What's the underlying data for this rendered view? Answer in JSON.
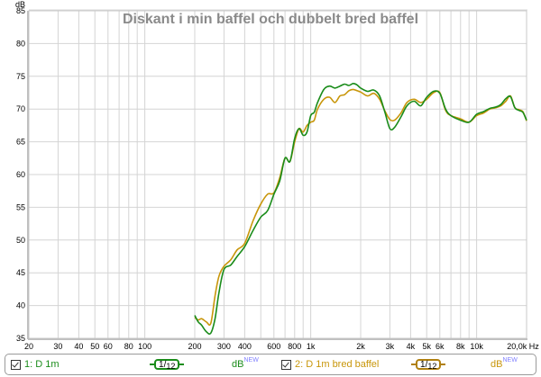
{
  "chart_data": {
    "type": "line",
    "title": "Diskant i min baffel och dubbelt bred baffel",
    "xlabel": "Hz",
    "ylabel": "dB",
    "xscale": "log",
    "xlim": [
      20,
      20000
    ],
    "ylim": [
      35,
      85
    ],
    "grid": true,
    "legend_position": "bottom",
    "y_ticks": [
      "35",
      "40",
      "45",
      "50",
      "55",
      "60",
      "65",
      "70",
      "75",
      "80",
      "85"
    ],
    "x_ticks": [
      "20",
      "30",
      "40",
      "50",
      "60",
      "80",
      "100",
      "200",
      "300",
      "400",
      "600",
      "800",
      "1k",
      "2k",
      "3k",
      "4k",
      "5k",
      "6k",
      "8k",
      "10k",
      "20,0k Hz"
    ],
    "series": [
      {
        "name": "1: D 1m",
        "color": "#1a8c1a",
        "x": [
          200,
          210,
          220,
          235,
          250,
          265,
          280,
          300,
          330,
          360,
          400,
          450,
          500,
          550,
          600,
          650,
          700,
          750,
          800,
          850,
          900,
          950,
          1000,
          1050,
          1100,
          1200,
          1300,
          1400,
          1500,
          1600,
          1700,
          1800,
          1900,
          2000,
          2200,
          2400,
          2600,
          2800,
          3000,
          3200,
          3500,
          3800,
          4200,
          4600,
          5000,
          5500,
          6000,
          6500,
          7000,
          8000,
          9000,
          10000,
          11000,
          12000,
          13000,
          14000,
          15000,
          16000,
          17000,
          18000,
          19000,
          20000
        ],
        "values": [
          38.5,
          37.5,
          37,
          36,
          35.8,
          38,
          42,
          45.5,
          46.2,
          47.5,
          49,
          51.5,
          53.5,
          54.5,
          57,
          59,
          62.5,
          62,
          65.5,
          67,
          66,
          66.5,
          69,
          69.5,
          71,
          73,
          73.5,
          73.2,
          73.5,
          73.8,
          73.6,
          73.9,
          73.7,
          73.2,
          72.7,
          72.9,
          72,
          69.5,
          67,
          67.2,
          68.8,
          70.5,
          71.2,
          70.5,
          71.8,
          72.7,
          72.4,
          70,
          69,
          68.3,
          68,
          69.2,
          69.6,
          70.1,
          70.3,
          70.7,
          71.6,
          71.9,
          70.2,
          69.8,
          69.5,
          68.3
        ]
      },
      {
        "name": "2: D 1m bred baffel",
        "color": "#c8960a",
        "x": [
          200,
          210,
          220,
          235,
          250,
          265,
          280,
          300,
          330,
          360,
          400,
          450,
          500,
          550,
          600,
          650,
          700,
          750,
          800,
          850,
          900,
          950,
          1000,
          1050,
          1100,
          1200,
          1300,
          1400,
          1500,
          1600,
          1700,
          1800,
          1900,
          2000,
          2200,
          2400,
          2600,
          2800,
          3000,
          3200,
          3500,
          3800,
          4200,
          4600,
          5000,
          5500,
          6000,
          6500,
          7000,
          8000,
          9000,
          10000,
          11000,
          12000,
          13000,
          14000,
          15000,
          16000,
          17000,
          18000,
          19000,
          20000
        ],
        "values": [
          38.2,
          37.8,
          38,
          37.5,
          37.3,
          41.5,
          44.5,
          46,
          47,
          48.5,
          49.5,
          53,
          55.5,
          57,
          57.2,
          59.5,
          62.5,
          62,
          65,
          67,
          66.5,
          67.5,
          68,
          68.3,
          70,
          71.5,
          71.8,
          71,
          72,
          72.2,
          72.8,
          73,
          72.8,
          72.6,
          72,
          72.4,
          71.5,
          69.7,
          68.4,
          68.3,
          69.4,
          71,
          71.5,
          71,
          71.5,
          72.5,
          72.5,
          69.8,
          69,
          68.5,
          68,
          69,
          69.4,
          70,
          70.2,
          70.5,
          71.2,
          72,
          70.2,
          69.9,
          69.6,
          68.2
        ]
      }
    ]
  },
  "legend": {
    "items": [
      {
        "label": "1: D 1m",
        "checked": true,
        "color": "#1a8c1a",
        "smoothing": "1/12",
        "smoothing_num": "1",
        "smoothing_den": "12",
        "unit": "dB",
        "unit_sup": "NEW"
      },
      {
        "label": "2: D 1m bred baffel",
        "checked": true,
        "color": "#c8960a",
        "smoothing": "1/12",
        "smoothing_num": "1",
        "smoothing_den": "12",
        "unit": "dB",
        "unit_sup": "NEW"
      }
    ]
  }
}
